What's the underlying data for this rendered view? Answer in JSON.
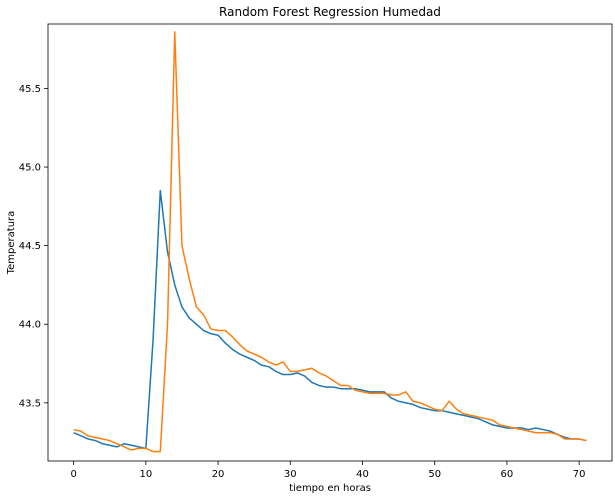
{
  "chart_data": {
    "type": "line",
    "title": "Random Forest Regression Humedad",
    "xlabel": "tiempo en horas",
    "ylabel": "Temperatura",
    "xlim": [
      -3.55,
      74.55
    ],
    "ylim": [
      43.13,
      45.91
    ],
    "x_ticks": [
      0,
      10,
      20,
      30,
      40,
      50,
      60,
      70
    ],
    "x_tick_labels": [
      "0",
      "10",
      "20",
      "30",
      "40",
      "50",
      "60",
      "70"
    ],
    "y_ticks": [
      43.5,
      44.0,
      44.5,
      45.0,
      45.5
    ],
    "y_tick_labels": [
      "43.5",
      "44.0",
      "44.5",
      "45.0",
      "45.5"
    ],
    "grid": false,
    "legend": "none",
    "x": [
      0,
      1,
      2,
      3,
      4,
      5,
      6,
      7,
      8,
      9,
      10,
      11,
      12,
      13,
      14,
      15,
      16,
      17,
      18,
      19,
      20,
      21,
      22,
      23,
      24,
      25,
      26,
      27,
      28,
      29,
      30,
      31,
      32,
      33,
      34,
      35,
      36,
      37,
      38,
      39,
      40,
      41,
      42,
      43,
      44,
      45,
      46,
      47,
      48,
      49,
      50,
      51,
      52,
      53,
      54,
      55,
      56,
      57,
      58,
      59,
      60,
      61,
      62,
      63,
      64,
      65,
      66,
      67,
      68,
      69,
      70,
      71
    ],
    "series": [
      {
        "color": "#1f77b4",
        "values": [
          43.31,
          43.29,
          43.27,
          43.26,
          43.24,
          43.23,
          43.22,
          43.24,
          43.23,
          43.22,
          43.21,
          43.9,
          44.85,
          44.46,
          44.25,
          44.11,
          44.04,
          44.0,
          43.96,
          43.94,
          43.93,
          43.88,
          43.84,
          43.81,
          43.79,
          43.77,
          43.74,
          43.73,
          43.7,
          43.68,
          43.68,
          43.69,
          43.67,
          43.63,
          43.61,
          43.6,
          43.6,
          43.59,
          43.59,
          43.59,
          43.58,
          43.57,
          43.57,
          43.57,
          43.53,
          43.51,
          43.5,
          43.49,
          43.47,
          43.46,
          43.45,
          43.45,
          43.44,
          43.43,
          43.42,
          43.41,
          43.4,
          43.38,
          43.36,
          43.35,
          43.34,
          43.34,
          43.34,
          43.33,
          43.34,
          43.33,
          43.32,
          43.3,
          43.28,
          43.27,
          43.27,
          43.26
        ]
      },
      {
        "color": "#ff7f0e",
        "values": [
          43.33,
          43.32,
          43.29,
          43.28,
          43.27,
          43.26,
          43.24,
          43.22,
          43.2,
          43.21,
          43.21,
          43.19,
          43.19,
          44.0,
          45.86,
          44.5,
          44.29,
          44.11,
          44.06,
          43.97,
          43.96,
          43.96,
          43.92,
          43.87,
          43.83,
          43.81,
          43.79,
          43.76,
          43.74,
          43.76,
          43.7,
          43.7,
          43.71,
          43.72,
          43.69,
          43.67,
          43.64,
          43.61,
          43.61,
          43.58,
          43.57,
          43.56,
          43.56,
          43.56,
          43.55,
          43.55,
          43.57,
          43.51,
          43.5,
          43.48,
          43.46,
          43.45,
          43.51,
          43.46,
          43.43,
          43.42,
          43.41,
          43.4,
          43.39,
          43.36,
          43.35,
          43.34,
          43.33,
          43.32,
          43.31,
          43.31,
          43.31,
          43.3,
          43.27,
          43.27,
          43.27,
          43.26
        ]
      }
    ]
  }
}
